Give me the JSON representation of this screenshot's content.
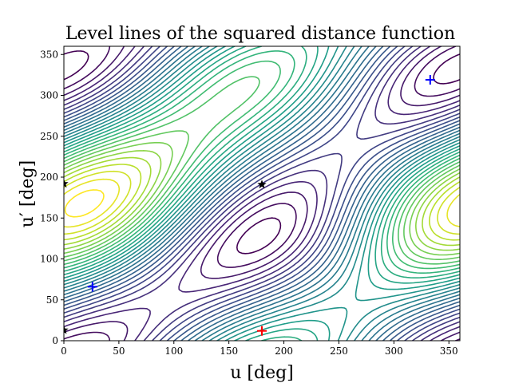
{
  "chart_data": {
    "type": "contour",
    "title": "Level lines of the squared distance function",
    "xlabel": "u [deg]",
    "ylabel": "u′ [deg]",
    "xlim": [
      0,
      360
    ],
    "ylim": [
      0,
      360
    ],
    "xticks": [
      "0",
      "50",
      "100",
      "150",
      "200",
      "250",
      "300",
      "350"
    ],
    "yticks": [
      "0",
      "50",
      "100",
      "150",
      "200",
      "250",
      "300",
      "350"
    ],
    "grid": false,
    "legend": "none",
    "colormap": "viridis",
    "levels": 30,
    "markers": [
      {
        "kind": "plus",
        "color": "#0000ff",
        "x": 333,
        "y": 319
      },
      {
        "kind": "plus",
        "color": "#0000ff",
        "x": 26,
        "y": 66
      },
      {
        "kind": "plus",
        "color": "#ff0000",
        "x": 180,
        "y": 12
      },
      {
        "kind": "star",
        "color": "#000000",
        "x": 180,
        "y": 191
      },
      {
        "kind": "star",
        "color": "#000000",
        "x": 0,
        "y": 192
      },
      {
        "kind": "star",
        "color": "#000000",
        "x": 0,
        "y": 13
      }
    ]
  }
}
